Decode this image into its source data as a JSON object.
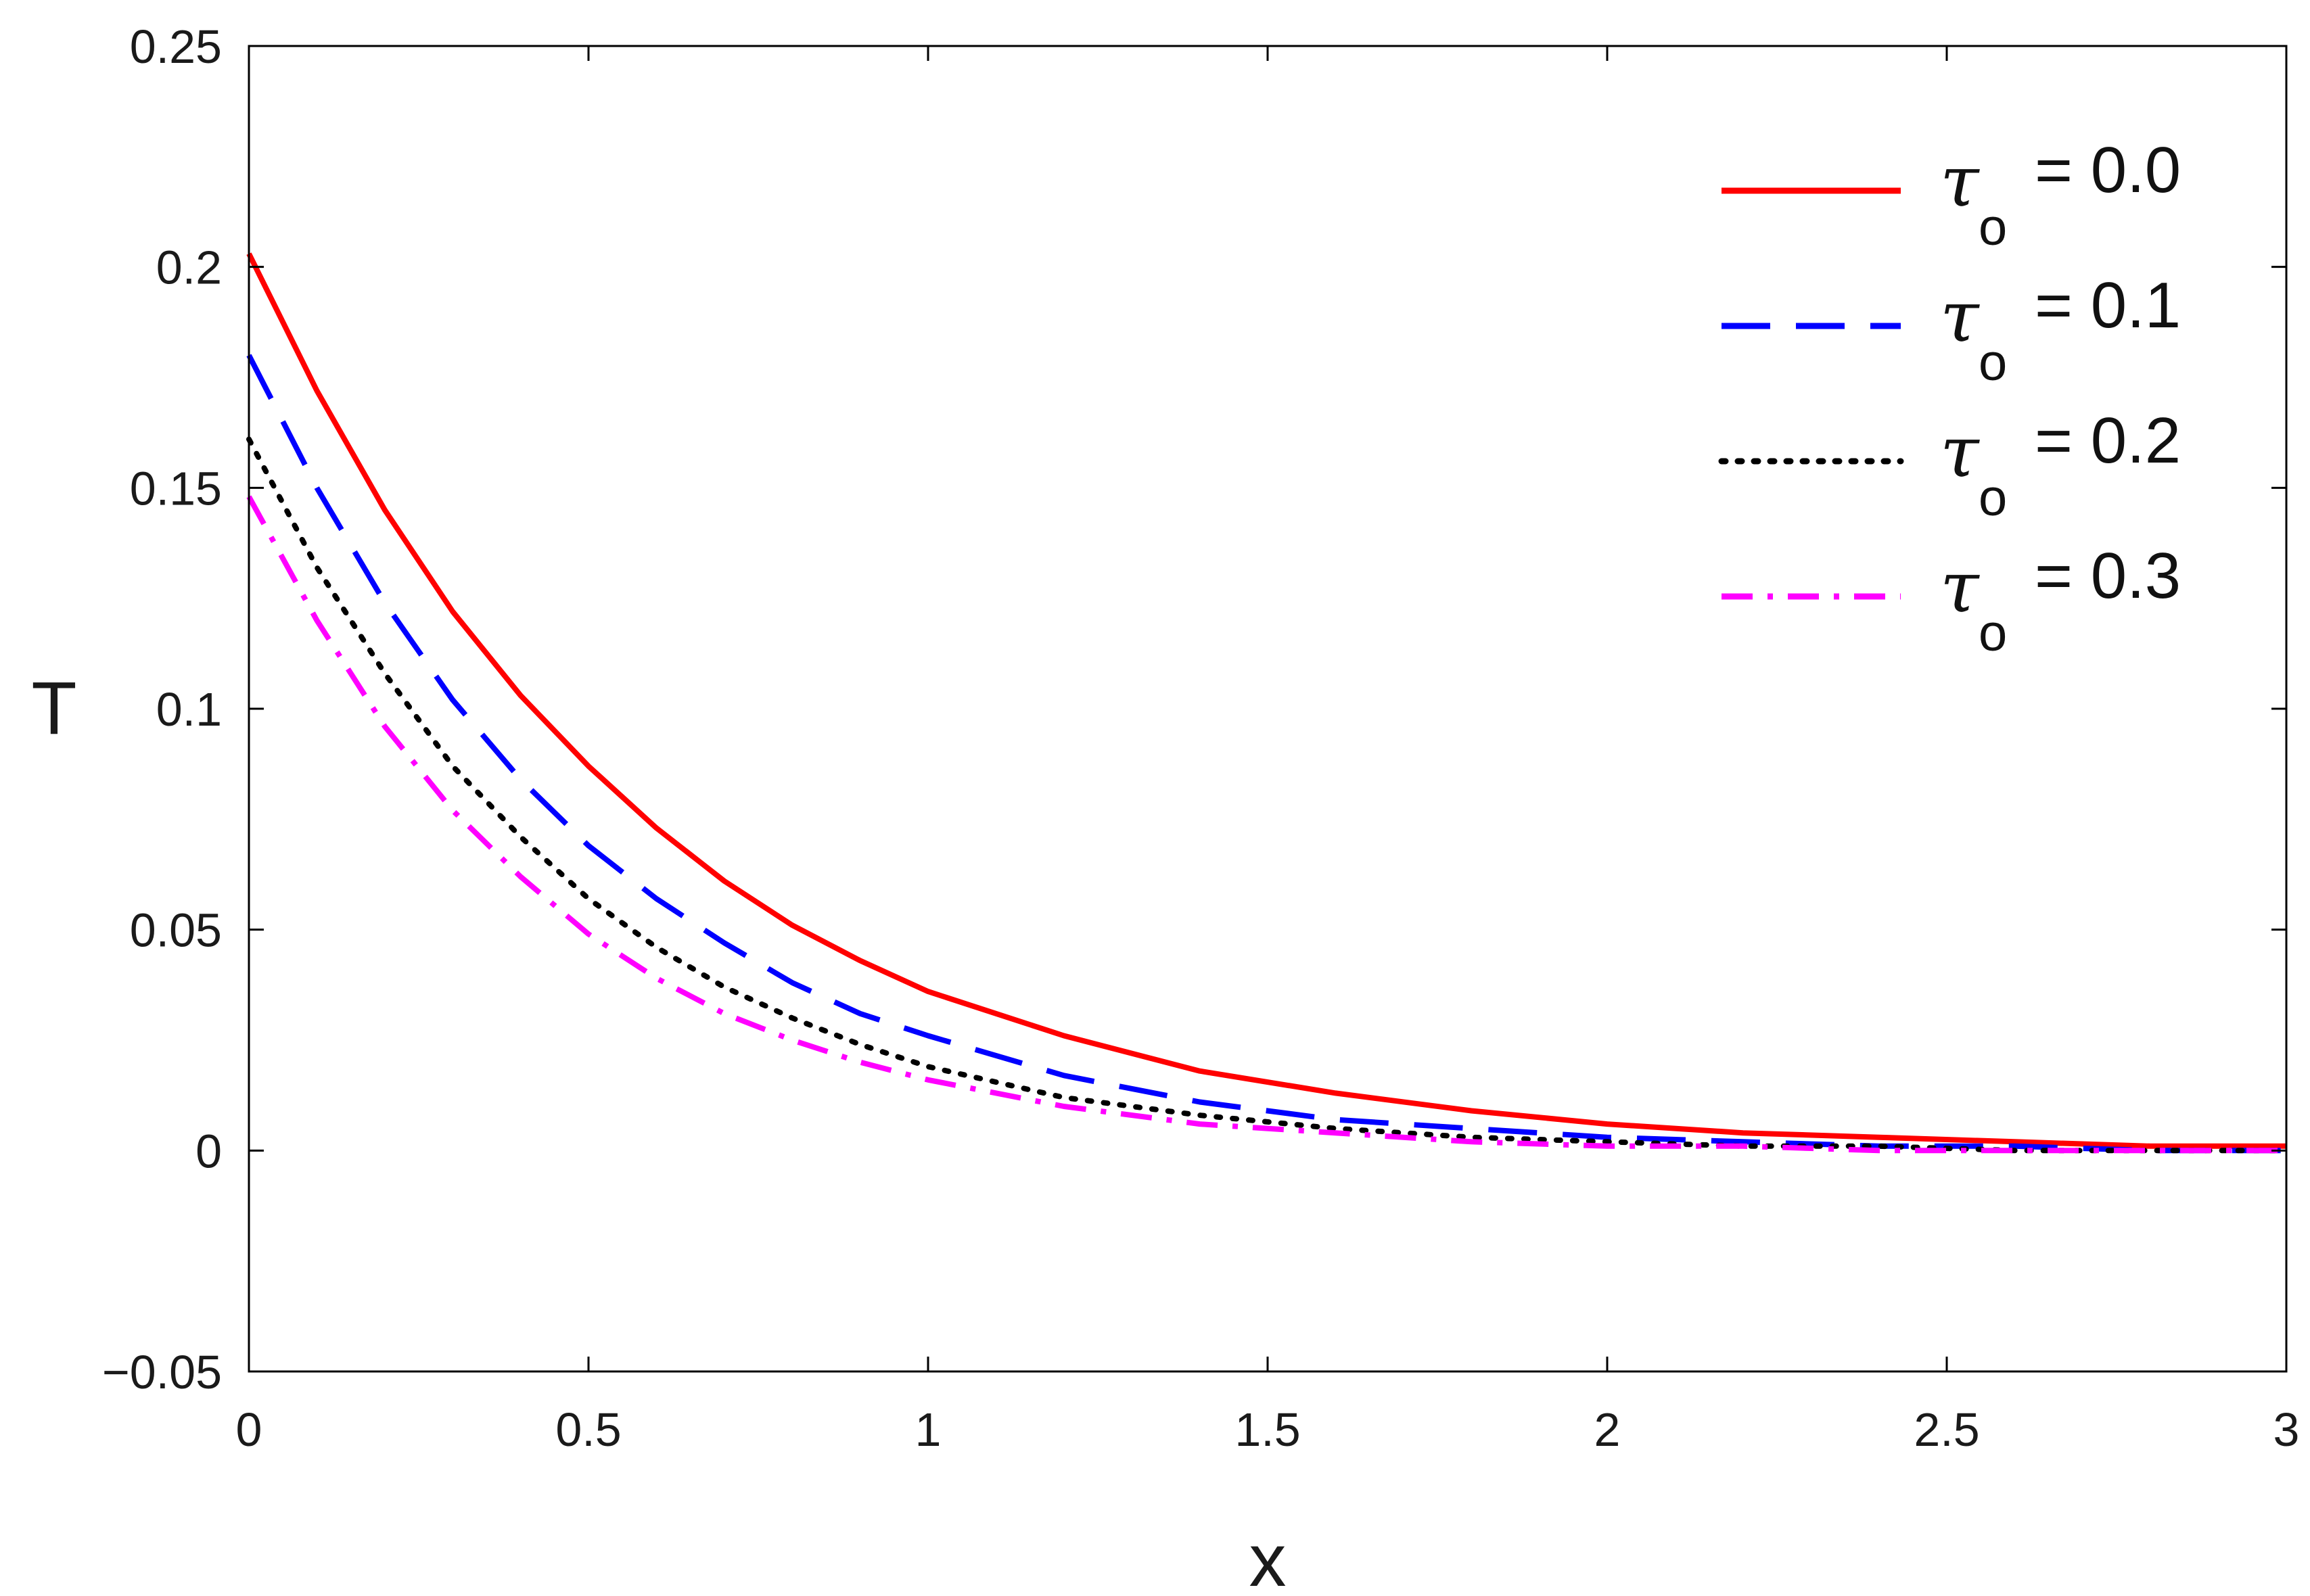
{
  "chart_data": {
    "type": "line",
    "xlabel": "x",
    "ylabel": "T",
    "xlim": [
      0,
      3
    ],
    "ylim": [
      -0.05,
      0.25
    ],
    "xticks": [
      0,
      0.5,
      1,
      1.5,
      2,
      2.5,
      3
    ],
    "yticks": [
      -0.05,
      0,
      0.05,
      0.1,
      0.15,
      0.2,
      0.25
    ],
    "xtick_labels": [
      "0",
      "0.5",
      "1",
      "1.5",
      "2",
      "2.5",
      "3"
    ],
    "ytick_labels": [
      "−0.05",
      "0",
      "0.05",
      "0.1",
      "0.15",
      "0.2",
      "0.25"
    ],
    "grid": false,
    "legend_position": "top-right",
    "x": [
      0,
      0.1,
      0.2,
      0.3,
      0.4,
      0.5,
      0.6,
      0.7,
      0.8,
      0.9,
      1.0,
      1.2,
      1.4,
      1.6,
      1.8,
      2.0,
      2.2,
      2.4,
      2.6,
      2.8,
      3.0
    ],
    "series": [
      {
        "name": "= 0.0",
        "symbol": "τ",
        "subscript": "o",
        "color": "#ff0000",
        "style": "solid",
        "values": [
          0.203,
          0.172,
          0.145,
          0.122,
          0.103,
          0.087,
          0.073,
          0.061,
          0.051,
          0.043,
          0.036,
          0.026,
          0.018,
          0.013,
          0.009,
          0.006,
          0.004,
          0.003,
          0.002,
          0.001,
          0.001
        ]
      },
      {
        "name": "= 0.1",
        "symbol": "τ",
        "subscript": "o",
        "color": "#0000ff",
        "style": "dashed",
        "values": [
          0.18,
          0.15,
          0.124,
          0.102,
          0.084,
          0.069,
          0.057,
          0.047,
          0.038,
          0.031,
          0.026,
          0.017,
          0.011,
          0.007,
          0.005,
          0.003,
          0.002,
          0.001,
          0.001,
          0.0,
          0.0
        ]
      },
      {
        "name": "= 0.2",
        "symbol": "τ",
        "subscript": "o",
        "color": "#000000",
        "style": "dotted",
        "values": [
          0.161,
          0.132,
          0.108,
          0.087,
          0.071,
          0.057,
          0.046,
          0.037,
          0.03,
          0.024,
          0.019,
          0.012,
          0.008,
          0.005,
          0.003,
          0.002,
          0.001,
          0.001,
          0.0,
          0.0,
          0.0
        ]
      },
      {
        "name": "= 0.3",
        "symbol": "τ",
        "subscript": "o",
        "color": "#ff00ff",
        "style": "dashdot",
        "values": [
          0.148,
          0.12,
          0.096,
          0.077,
          0.062,
          0.049,
          0.039,
          0.031,
          0.025,
          0.02,
          0.016,
          0.01,
          0.006,
          0.004,
          0.002,
          0.001,
          0.001,
          0.0,
          0.0,
          0.0,
          0.0
        ]
      }
    ]
  }
}
